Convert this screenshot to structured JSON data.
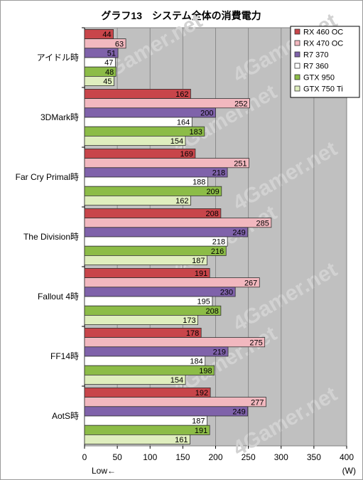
{
  "chart_data": {
    "type": "bar",
    "orientation": "horizontal",
    "title": "グラフ13　システム全体の消費電力",
    "unit_label": "(W)",
    "direction_note": "Low←",
    "categories": [
      "アイドル時",
      "3DMark時",
      "Far Cry Primal時",
      "The Division時",
      "Fallout 4時",
      "FF14時",
      "AotS時"
    ],
    "series": [
      {
        "name": "RX 460 OC",
        "color": "#c8454a",
        "values": [
          44,
          162,
          169,
          208,
          191,
          178,
          192
        ]
      },
      {
        "name": "RX 470 OC",
        "color": "#f2b8bf",
        "values": [
          63,
          252,
          251,
          285,
          267,
          275,
          277
        ]
      },
      {
        "name": "R7 370",
        "color": "#7f62aa",
        "values": [
          51,
          200,
          218,
          249,
          230,
          219,
          249
        ]
      },
      {
        "name": "R7 360",
        "color": "#ffffff",
        "values": [
          47,
          164,
          188,
          218,
          195,
          184,
          187
        ]
      },
      {
        "name": "GTX 950",
        "color": "#8cbc47",
        "values": [
          48,
          183,
          209,
          216,
          208,
          198,
          191
        ]
      },
      {
        "name": "GTX 750 Ti",
        "color": "#dfeebe",
        "values": [
          45,
          154,
          162,
          187,
          173,
          154,
          161
        ]
      }
    ],
    "xlim": [
      0,
      400
    ],
    "xticks": [
      0,
      50,
      100,
      150,
      200,
      250,
      300,
      350,
      400
    ],
    "grid": true,
    "legend_position": "top-right",
    "watermark": "4Gamer.net",
    "plot_background": "#c0c0c0"
  }
}
